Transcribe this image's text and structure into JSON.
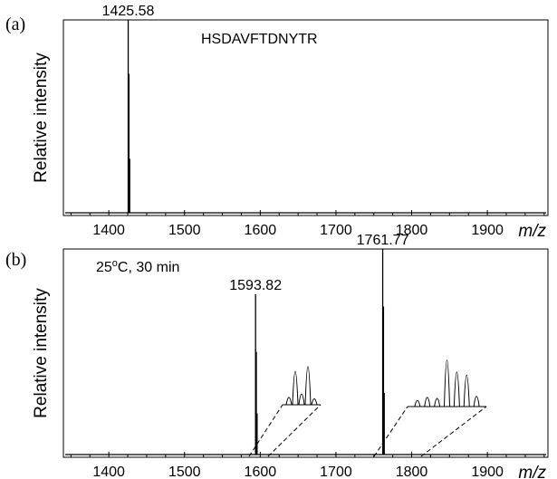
{
  "chart_data": [
    {
      "type": "line",
      "panel_label": "(a)",
      "ylabel": "Relative intensity",
      "xlabel": "m/z",
      "xlim": [
        1340,
        1980
      ],
      "ylim": [
        0,
        1
      ],
      "xticks": [
        1400,
        1500,
        1600,
        1700,
        1800,
        1900
      ],
      "xtick_labels": [
        "1400",
        "1500",
        "1600",
        "1700",
        "1800",
        "1900"
      ],
      "legend_text": "HSDAVFTDNYTR",
      "peaks": [
        {
          "mz": 1425.58,
          "intensity": 1.0,
          "label": "1425.58"
        },
        {
          "mz": 1426.58,
          "intensity": 0.72,
          "label": ""
        },
        {
          "mz": 1427.58,
          "intensity": 0.28,
          "label": ""
        }
      ],
      "insets": []
    },
    {
      "type": "line",
      "panel_label": "(b)",
      "ylabel": "Relative intensity",
      "xlabel": "m/z",
      "xlim": [
        1340,
        1980
      ],
      "ylim": [
        0,
        1
      ],
      "xticks": [
        1400,
        1500,
        1600,
        1700,
        1800,
        1900
      ],
      "xtick_labels": [
        "1400",
        "1500",
        "1600",
        "1700",
        "1800",
        "1900"
      ],
      "condition": {
        "temp": "25",
        "degree": "o",
        "rest": "C, 30 min"
      },
      "peaks": [
        {
          "mz": 1593.82,
          "intensity": 0.78,
          "label": "1593.82"
        },
        {
          "mz": 1594.82,
          "intensity": 0.5,
          "label": ""
        },
        {
          "mz": 1595.82,
          "intensity": 0.2,
          "label": ""
        },
        {
          "mz": 1761.77,
          "intensity": 1.0,
          "label": "1761.77"
        },
        {
          "mz": 1762.77,
          "intensity": 0.72,
          "label": ""
        },
        {
          "mz": 1763.77,
          "intensity": 0.3,
          "label": ""
        }
      ],
      "insets": [
        {
          "anchor_mz": 1593.82,
          "peaks": [
            0.15,
            0.68,
            0.22,
            0.78,
            0.12
          ]
        },
        {
          "anchor_mz": 1761.77,
          "peaks": [
            0.12,
            0.18,
            0.16,
            0.92,
            0.68,
            0.62,
            0.2
          ]
        }
      ]
    }
  ]
}
